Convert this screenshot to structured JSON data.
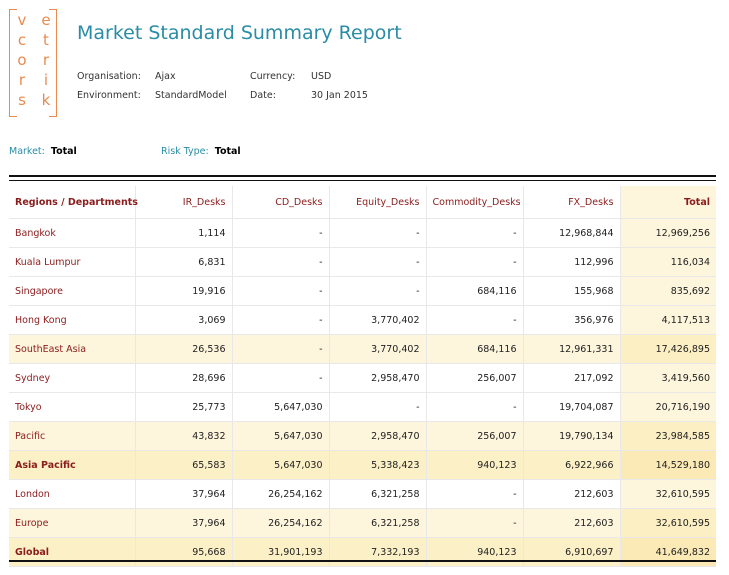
{
  "logo": {
    "rows": [
      [
        "v",
        "e"
      ],
      [
        "c",
        "t"
      ],
      [
        "o",
        "r"
      ],
      [
        "r",
        "i"
      ],
      [
        "s",
        "k"
      ]
    ],
    "color": "#e98b4e"
  },
  "report": {
    "title": "Market Standard Summary Report",
    "organisation_label": "Organisation:",
    "organisation_value": "Ajax",
    "environment_label": "Environment:",
    "environment_value": "StandardModel",
    "currency_label": "Currency:",
    "currency_value": "USD",
    "date_label": "Date:",
    "date_value": "30 Jan 2015"
  },
  "filters": {
    "market_label": "Market:",
    "market_value": "Total",
    "risk_type_label": "Risk Type:",
    "risk_type_value": "Total"
  },
  "table": {
    "headers": [
      "Regions / Departments",
      "IR_Desks",
      "CD_Desks",
      "Equity_Desks",
      "Commodity_Desks",
      "FX_Desks",
      "Total"
    ],
    "rows": [
      {
        "type": "row",
        "cells": [
          "Bangkok",
          "1,114",
          "-",
          "-",
          "-",
          "12,968,844",
          "12,969,256"
        ]
      },
      {
        "type": "row",
        "cells": [
          "Kuala Lumpur",
          "6,831",
          "-",
          "-",
          "-",
          "112,996",
          "116,034"
        ]
      },
      {
        "type": "row",
        "cells": [
          "Singapore",
          "19,916",
          "-",
          "-",
          "684,116",
          "155,968",
          "835,692"
        ]
      },
      {
        "type": "row",
        "cells": [
          "Hong Kong",
          "3,069",
          "-",
          "3,770,402",
          "-",
          "356,976",
          "4,117,513"
        ]
      },
      {
        "type": "sub",
        "cells": [
          "SouthEast Asia",
          "26,536",
          "-",
          "3,770,402",
          "684,116",
          "12,961,331",
          "17,426,895"
        ]
      },
      {
        "type": "row",
        "cells": [
          "Sydney",
          "28,696",
          "-",
          "2,958,470",
          "256,007",
          "217,092",
          "3,419,560"
        ]
      },
      {
        "type": "row",
        "cells": [
          "Tokyo",
          "25,773",
          "5,647,030",
          "-",
          "-",
          "19,704,087",
          "20,716,190"
        ]
      },
      {
        "type": "sub",
        "cells": [
          "Pacific",
          "43,832",
          "5,647,030",
          "2,958,470",
          "256,007",
          "19,790,134",
          "23,984,585"
        ]
      },
      {
        "type": "grp",
        "cells": [
          "Asia Pacific",
          "65,583",
          "5,647,030",
          "5,338,423",
          "940,123",
          "6,922,966",
          "14,529,180"
        ]
      },
      {
        "type": "row",
        "cells": [
          "London",
          "37,964",
          "26,254,162",
          "6,321,258",
          "-",
          "212,603",
          "32,610,595"
        ]
      },
      {
        "type": "sub",
        "cells": [
          "Europe",
          "37,964",
          "26,254,162",
          "6,321,258",
          "-",
          "212,603",
          "32,610,595"
        ]
      },
      {
        "type": "grp",
        "cells": [
          "Global",
          "95,668",
          "31,901,193",
          "7,332,193",
          "940,123",
          "6,910,697",
          "41,649,832"
        ]
      }
    ]
  }
}
